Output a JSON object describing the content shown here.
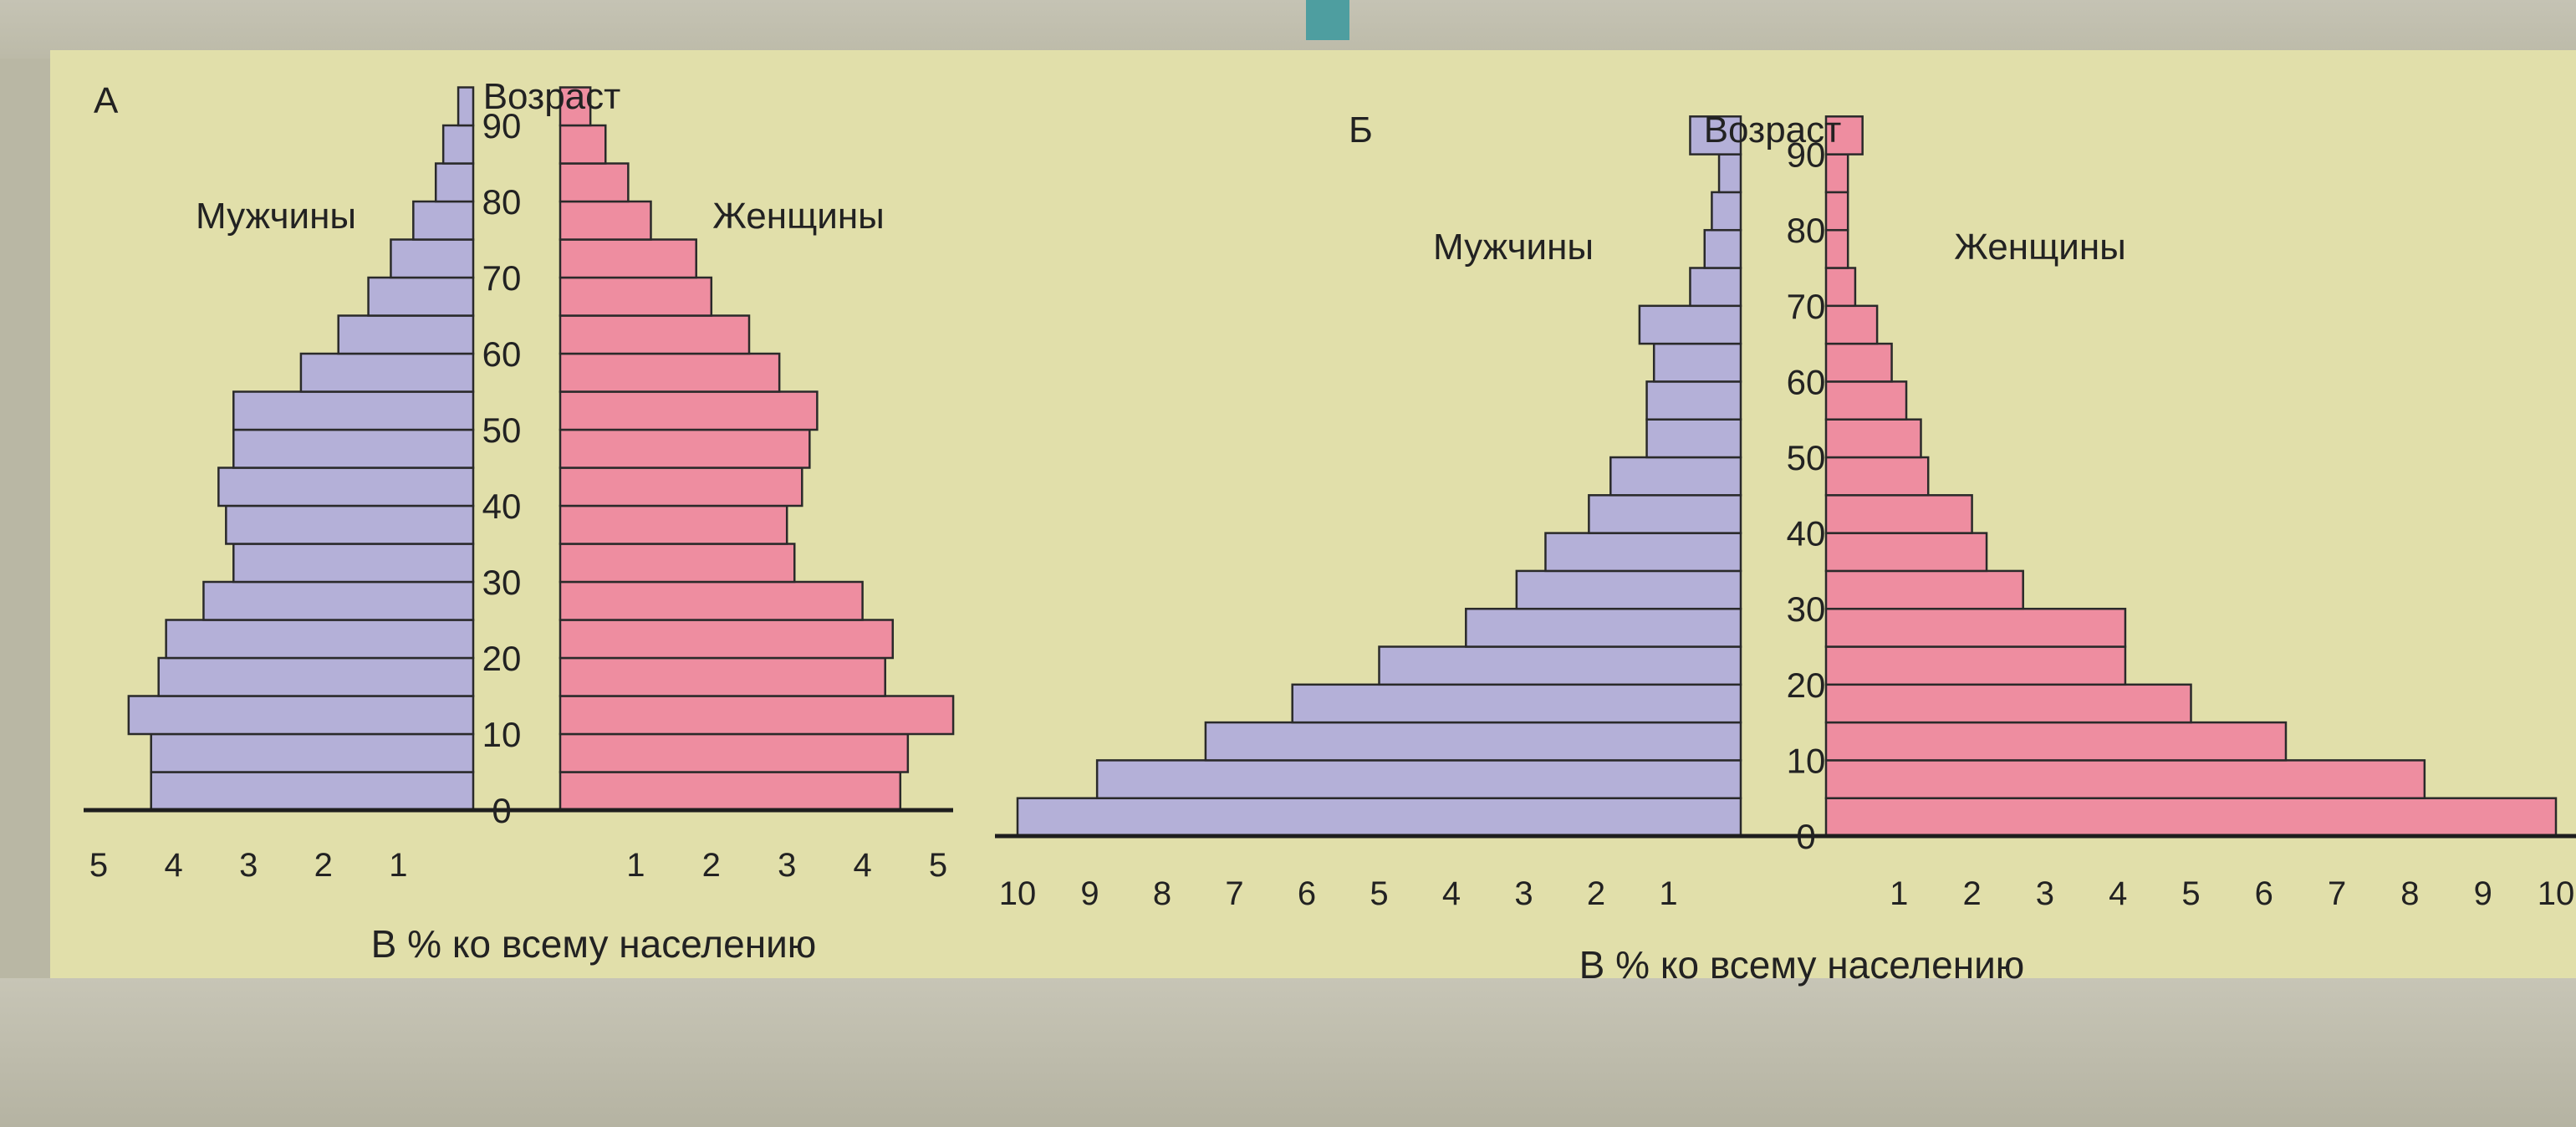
{
  "chart_data": [
    {
      "type": "bar",
      "orientation": "horizontal-population-pyramid",
      "panel_letter": "А",
      "age_axis_label": "Возраст",
      "male_label": "Мужчины",
      "female_label": "Женщины",
      "xlabel": "В % ко всему населению",
      "age_ticks": [
        "0",
        "10",
        "20",
        "30",
        "40",
        "50",
        "60",
        "70",
        "80",
        "90"
      ],
      "male_ticks": [
        "5",
        "4",
        "3",
        "2",
        "1"
      ],
      "female_ticks": [
        "1",
        "2",
        "3",
        "4",
        "5"
      ],
      "xlim": [
        0,
        5
      ],
      "age_groups": [
        "0-4",
        "5-9",
        "10-14",
        "15-19",
        "20-24",
        "25-29",
        "30-34",
        "35-39",
        "40-44",
        "45-49",
        "50-54",
        "55-59",
        "60-64",
        "65-69",
        "70-74",
        "75-79",
        "80-84",
        "85-89",
        "90+"
      ],
      "series": [
        {
          "name": "Мужчины",
          "color": "#b4b0d8",
          "values": [
            4.3,
            4.3,
            4.6,
            4.2,
            4.1,
            3.6,
            3.2,
            3.3,
            3.4,
            3.2,
            3.2,
            2.3,
            1.8,
            1.4,
            1.1,
            0.8,
            0.5,
            0.4,
            0.2
          ]
        },
        {
          "name": "Женщины",
          "color": "#ee8da0",
          "values": [
            4.5,
            4.6,
            5.2,
            4.3,
            4.4,
            4.0,
            3.1,
            3.0,
            3.2,
            3.3,
            3.4,
            2.9,
            2.5,
            2.0,
            1.8,
            1.2,
            0.9,
            0.6,
            0.4
          ]
        }
      ]
    },
    {
      "type": "bar",
      "orientation": "horizontal-population-pyramid",
      "panel_letter": "Б",
      "age_axis_label": "Возраст",
      "male_label": "Мужчины",
      "female_label": "Женщины",
      "xlabel": "В % ко всему населению",
      "age_ticks": [
        "0",
        "10",
        "20",
        "30",
        "40",
        "50",
        "60",
        "70",
        "80",
        "90"
      ],
      "male_ticks": [
        "10",
        "9",
        "8",
        "7",
        "6",
        "5",
        "4",
        "3",
        "2",
        "1"
      ],
      "female_ticks": [
        "1",
        "2",
        "3",
        "4",
        "5",
        "6",
        "7",
        "8",
        "9",
        "10"
      ],
      "xlim": [
        0,
        10
      ],
      "age_groups": [
        "0-4",
        "5-9",
        "10-14",
        "15-19",
        "20-24",
        "25-29",
        "30-34",
        "35-39",
        "40-44",
        "45-49",
        "50-54",
        "55-59",
        "60-64",
        "65-69",
        "70-74",
        "75-79",
        "80-84",
        "85-89",
        "90+"
      ],
      "series": [
        {
          "name": "Мужчины",
          "color": "#b4b0d8",
          "values": [
            10.0,
            8.9,
            7.4,
            6.2,
            5.0,
            3.8,
            3.1,
            2.7,
            2.1,
            1.8,
            1.3,
            1.3,
            1.2,
            1.4,
            0.7,
            0.5,
            0.4,
            0.3,
            0.7
          ]
        },
        {
          "name": "Женщины",
          "color": "#ee8da0",
          "values": [
            10.0,
            8.2,
            6.3,
            5.0,
            4.1,
            4.1,
            2.7,
            2.2,
            2.0,
            1.4,
            1.3,
            1.1,
            0.9,
            0.7,
            0.4,
            0.3,
            0.3,
            0.3,
            0.5
          ]
        }
      ]
    }
  ]
}
